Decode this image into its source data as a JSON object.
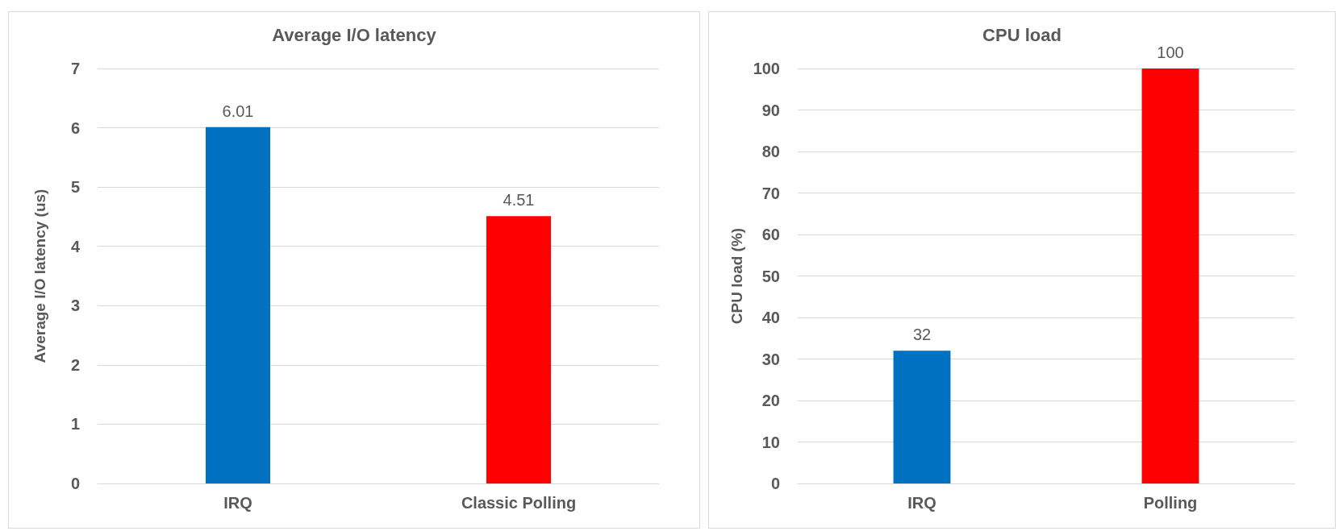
{
  "chart_data": [
    {
      "type": "bar",
      "title": "Average I/O latency",
      "ylabel": "Average I/O latency (us)",
      "categories": [
        "IRQ",
        "Classic Polling"
      ],
      "values": [
        6.01,
        4.51
      ],
      "colors": [
        "#0070c0",
        "#ff0000"
      ],
      "ylim": [
        0,
        7
      ],
      "yticks": [
        0,
        1,
        2,
        3,
        4,
        5,
        6,
        7
      ],
      "grid": "y",
      "data_labels": true
    },
    {
      "type": "bar",
      "title": "CPU load",
      "ylabel": "CPU load (%)",
      "categories": [
        "IRQ",
        "Polling"
      ],
      "values": [
        32,
        100
      ],
      "colors": [
        "#0070c0",
        "#ff0000"
      ],
      "ylim": [
        0,
        100
      ],
      "yticks": [
        0,
        10,
        20,
        30,
        40,
        50,
        60,
        70,
        80,
        90,
        100
      ],
      "grid": "y",
      "data_labels": true
    }
  ]
}
